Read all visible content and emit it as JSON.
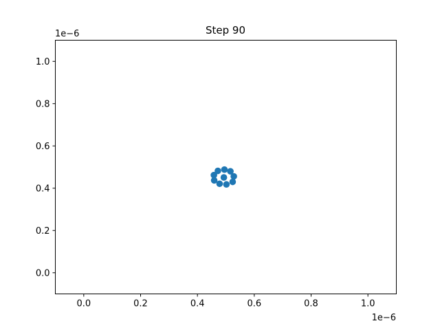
{
  "chart_data": {
    "type": "scatter",
    "title": "Step 90",
    "xlabel": "",
    "ylabel": "",
    "x_offset_label": "1e−6",
    "y_offset_label": "1e−6",
    "xlim": [
      -0.1,
      1.1
    ],
    "ylim": [
      -0.1,
      1.1
    ],
    "x_ticks": [
      0.0,
      0.2,
      0.4,
      0.6,
      0.8,
      1.0
    ],
    "y_ticks": [
      0.0,
      0.2,
      0.4,
      0.6,
      0.8,
      1.0
    ],
    "x_tick_labels": [
      "0.0",
      "0.2",
      "0.4",
      "0.6",
      "0.8",
      "1.0"
    ],
    "y_tick_labels": [
      "0.0",
      "0.2",
      "0.4",
      "0.6",
      "0.8",
      "1.0"
    ],
    "grid": false,
    "color": "#1f77b4",
    "points": [
      {
        "x": 0.493,
        "y": 0.451
      },
      {
        "x": 0.495,
        "y": 0.488
      },
      {
        "x": 0.516,
        "y": 0.48
      },
      {
        "x": 0.528,
        "y": 0.456
      },
      {
        "x": 0.524,
        "y": 0.43
      },
      {
        "x": 0.502,
        "y": 0.418
      },
      {
        "x": 0.478,
        "y": 0.421
      },
      {
        "x": 0.459,
        "y": 0.437
      },
      {
        "x": 0.458,
        "y": 0.462
      },
      {
        "x": 0.472,
        "y": 0.482
      }
    ]
  }
}
